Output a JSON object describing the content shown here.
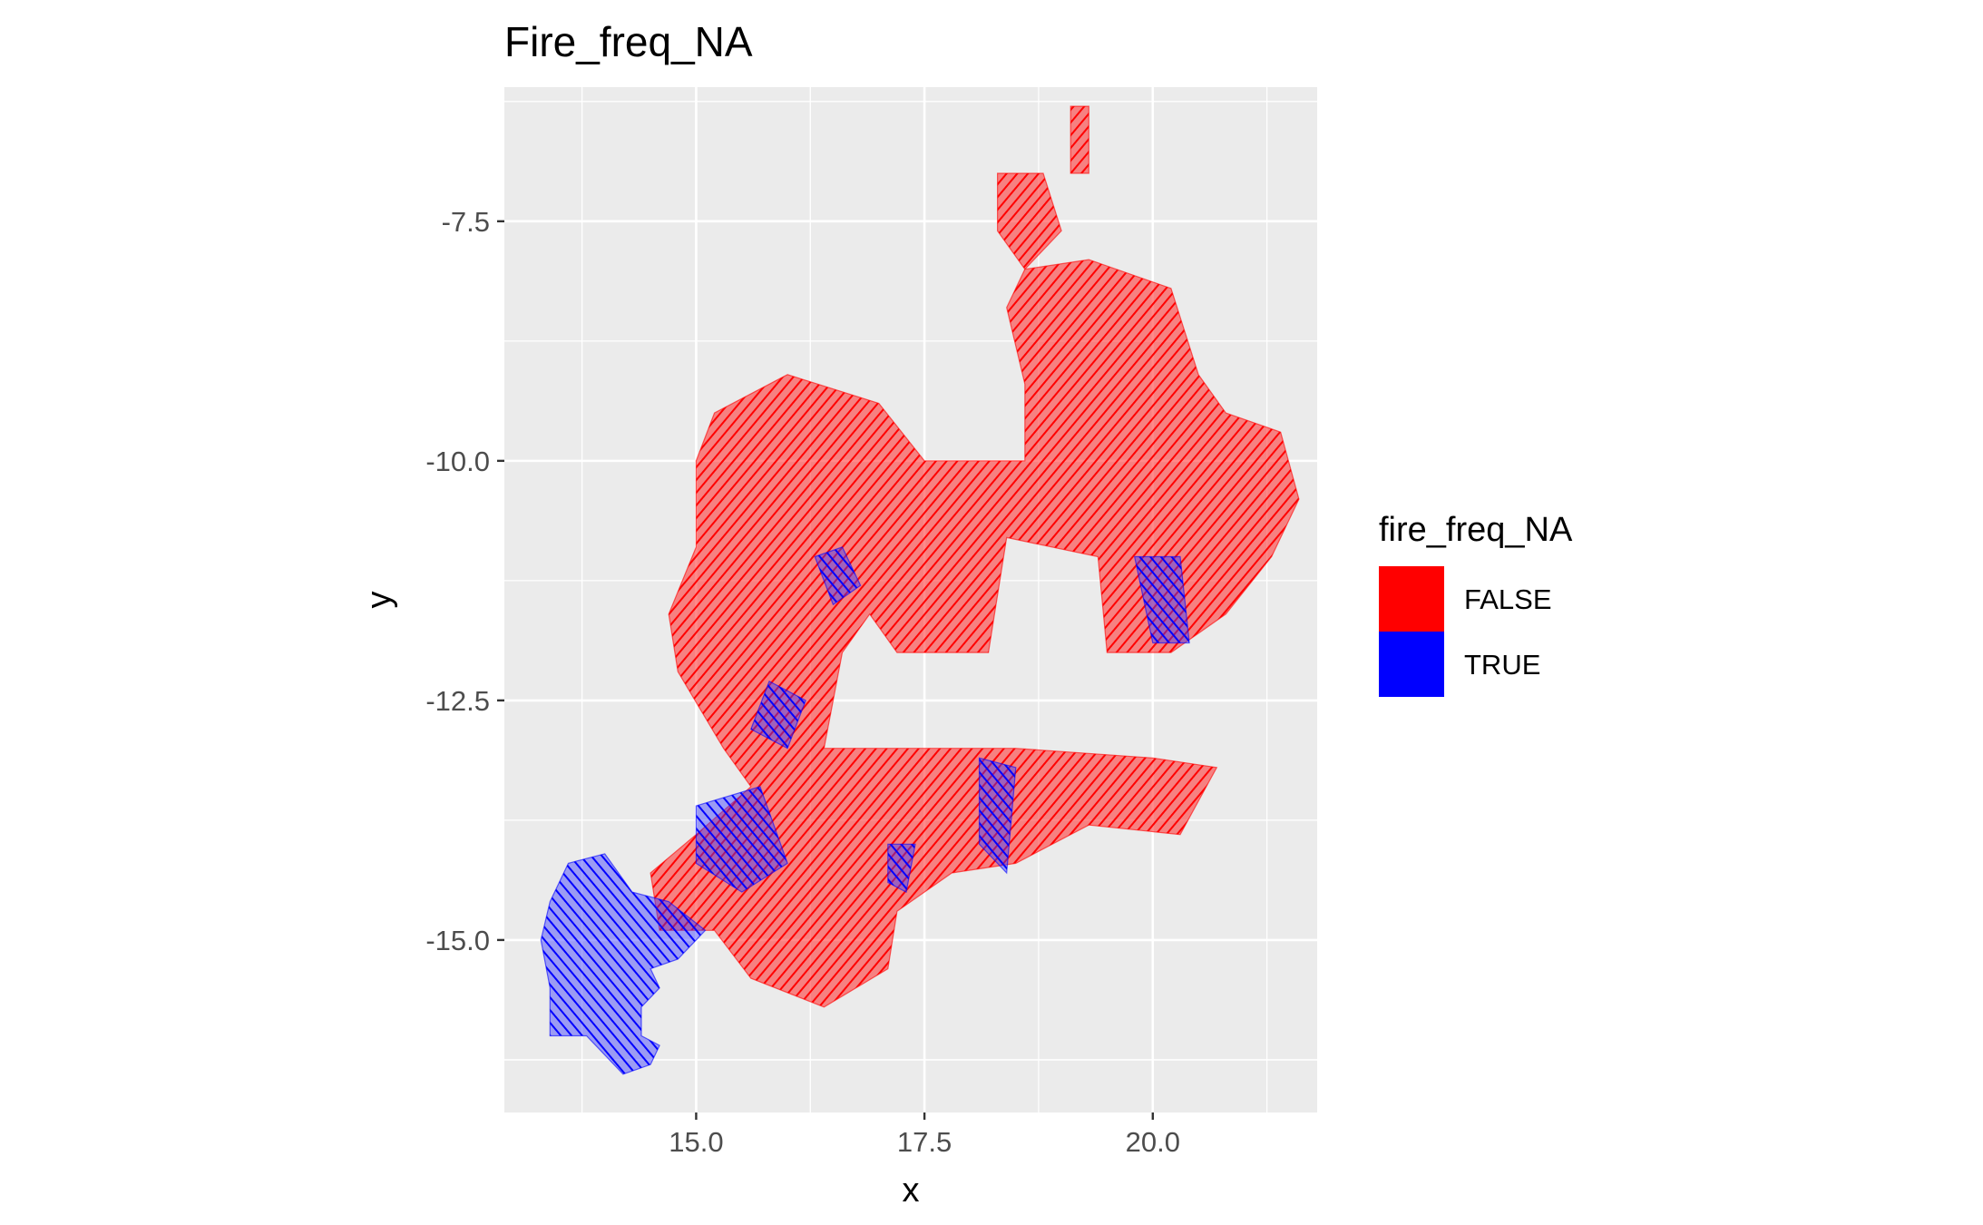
{
  "chart_data": {
    "type": "scatter",
    "title": "Fire_freq_NA",
    "xlabel": "x",
    "ylabel": "y",
    "xlim": [
      12.9,
      21.8
    ],
    "ylim": [
      -16.8,
      -6.1
    ],
    "x_ticks": [
      15.0,
      17.5,
      20.0
    ],
    "x_tick_labels": [
      "15.0",
      "17.5",
      "20.0"
    ],
    "y_ticks": [
      -7.5,
      -10.0,
      -12.5,
      -15.0
    ],
    "y_tick_labels": [
      "-7.5",
      "-10.0",
      "-12.5",
      "-15.0"
    ],
    "grid": true,
    "legend": {
      "title": "fire_freq_NA",
      "placement": "right",
      "entries": [
        {
          "label": "FALSE",
          "color": "#ff0000"
        },
        {
          "label": "TRUE",
          "color": "#0000ff"
        }
      ]
    },
    "series": [
      {
        "name": "FALSE",
        "color": "#ff0000",
        "regions": [
          [
            [
              15.0,
              -10.0
            ],
            [
              15.2,
              -9.5
            ],
            [
              16.0,
              -9.1
            ],
            [
              17.0,
              -9.4
            ],
            [
              17.5,
              -10.0
            ],
            [
              18.6,
              -10.0
            ],
            [
              18.6,
              -9.2
            ],
            [
              18.4,
              -8.4
            ],
            [
              18.6,
              -8.0
            ],
            [
              19.3,
              -7.9
            ],
            [
              20.2,
              -8.2
            ],
            [
              20.5,
              -9.1
            ],
            [
              20.8,
              -9.5
            ],
            [
              21.4,
              -9.7
            ],
            [
              21.6,
              -10.4
            ],
            [
              21.3,
              -11.0
            ],
            [
              20.8,
              -11.6
            ],
            [
              20.2,
              -12.0
            ],
            [
              19.5,
              -12.0
            ],
            [
              19.4,
              -11.0
            ],
            [
              18.4,
              -10.8
            ],
            [
              18.2,
              -12.0
            ],
            [
              17.2,
              -12.0
            ],
            [
              16.9,
              -11.6
            ],
            [
              16.6,
              -12.0
            ],
            [
              16.4,
              -13.0
            ],
            [
              17.0,
              -13.0
            ],
            [
              18.5,
              -13.0
            ],
            [
              20.0,
              -13.1
            ],
            [
              20.7,
              -13.2
            ],
            [
              20.3,
              -13.9
            ],
            [
              19.3,
              -13.8
            ],
            [
              18.5,
              -14.2
            ],
            [
              17.8,
              -14.3
            ],
            [
              17.2,
              -14.7
            ],
            [
              17.1,
              -15.3
            ],
            [
              16.4,
              -15.7
            ],
            [
              15.6,
              -15.4
            ],
            [
              15.2,
              -14.9
            ],
            [
              14.6,
              -14.9
            ],
            [
              14.5,
              -14.3
            ],
            [
              15.0,
              -13.9
            ],
            [
              15.6,
              -13.4
            ],
            [
              15.3,
              -13.0
            ],
            [
              14.8,
              -12.2
            ],
            [
              14.7,
              -11.6
            ],
            [
              15.0,
              -10.9
            ]
          ],
          [
            [
              18.3,
              -7.0
            ],
            [
              18.8,
              -7.0
            ],
            [
              19.0,
              -7.6
            ],
            [
              18.6,
              -8.0
            ],
            [
              18.3,
              -7.6
            ]
          ],
          [
            [
              19.1,
              -6.3
            ],
            [
              19.3,
              -6.3
            ],
            [
              19.3,
              -7.0
            ],
            [
              19.1,
              -7.0
            ]
          ]
        ]
      },
      {
        "name": "TRUE",
        "color": "#0000ff",
        "regions": [
          [
            [
              13.3,
              -15.0
            ],
            [
              13.4,
              -14.6
            ],
            [
              13.6,
              -14.2
            ],
            [
              14.0,
              -14.1
            ],
            [
              14.3,
              -14.5
            ],
            [
              14.7,
              -14.6
            ],
            [
              15.1,
              -14.9
            ],
            [
              14.8,
              -15.2
            ],
            [
              14.5,
              -15.3
            ],
            [
              14.6,
              -15.5
            ],
            [
              14.4,
              -15.7
            ],
            [
              14.4,
              -16.0
            ],
            [
              14.6,
              -16.1
            ],
            [
              14.5,
              -16.3
            ],
            [
              14.2,
              -16.4
            ],
            [
              13.8,
              -16.0
            ],
            [
              13.4,
              -16.0
            ],
            [
              13.4,
              -15.5
            ]
          ],
          [
            [
              15.0,
              -13.6
            ],
            [
              15.7,
              -13.4
            ],
            [
              16.0,
              -14.2
            ],
            [
              15.5,
              -14.5
            ],
            [
              15.0,
              -14.2
            ]
          ],
          [
            [
              15.6,
              -12.8
            ],
            [
              15.8,
              -12.3
            ],
            [
              16.2,
              -12.5
            ],
            [
              16.0,
              -13.0
            ]
          ],
          [
            [
              16.3,
              -11.0
            ],
            [
              16.6,
              -10.9
            ],
            [
              16.8,
              -11.3
            ],
            [
              16.5,
              -11.5
            ]
          ],
          [
            [
              19.8,
              -11.0
            ],
            [
              20.3,
              -11.0
            ],
            [
              20.4,
              -11.9
            ],
            [
              20.0,
              -11.9
            ]
          ],
          [
            [
              18.1,
              -13.1
            ],
            [
              18.5,
              -13.2
            ],
            [
              18.4,
              -14.3
            ],
            [
              18.1,
              -14.0
            ]
          ],
          [
            [
              17.1,
              -14.0
            ],
            [
              17.4,
              -14.0
            ],
            [
              17.3,
              -14.5
            ],
            [
              17.1,
              -14.4
            ]
          ]
        ]
      }
    ]
  }
}
